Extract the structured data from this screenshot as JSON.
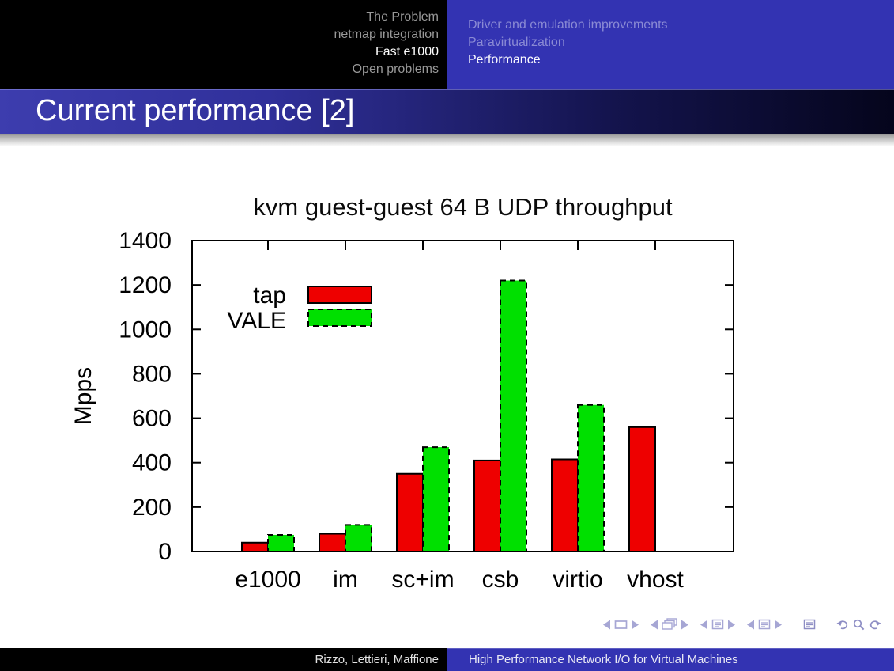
{
  "header": {
    "left_items": [
      {
        "label": "The Problem",
        "active": false
      },
      {
        "label": "netmap integration",
        "active": false
      },
      {
        "label": "Fast e1000",
        "active": true
      },
      {
        "label": "Open problems",
        "active": false
      }
    ],
    "right_items": [
      {
        "label": "Driver and emulation improvements",
        "active": false
      },
      {
        "label": "Paravirtualization",
        "active": false
      },
      {
        "label": "Performance",
        "active": true
      }
    ]
  },
  "frame": {
    "title": "Current performance [2]"
  },
  "chart_data": {
    "type": "bar",
    "title": "kvm guest-guest 64 B UDP throughput",
    "xlabel": "",
    "ylabel": "Mpps",
    "categories": [
      "e1000",
      "im",
      "sc+im",
      "csb",
      "virtio",
      "vhost"
    ],
    "series": [
      {
        "name": "tap",
        "color": "#ee0000",
        "border_style": "solid",
        "values": [
          40,
          80,
          350,
          410,
          415,
          560
        ]
      },
      {
        "name": "VALE",
        "color": "#00e000",
        "border_style": "dashed",
        "values": [
          75,
          120,
          470,
          1220,
          660,
          null
        ]
      }
    ],
    "ylim": [
      0,
      1400
    ],
    "ytick_step": 200,
    "grid": false,
    "legend_position": "top-left-inside"
  },
  "nav_icons": [
    {
      "name": "prev-slide-icon"
    },
    {
      "name": "slide-frame-icon"
    },
    {
      "name": "next-slide-icon"
    },
    {
      "name": "prev-frame-icon"
    },
    {
      "name": "frames-stack-icon"
    },
    {
      "name": "next-frame-icon"
    },
    {
      "name": "prev-subsection-icon"
    },
    {
      "name": "subsection-doc-icon"
    },
    {
      "name": "next-subsection-icon"
    },
    {
      "name": "prev-section-icon"
    },
    {
      "name": "section-doc-icon"
    },
    {
      "name": "next-section-icon"
    },
    {
      "name": "presentation-end-icon"
    },
    {
      "name": "back-icon"
    },
    {
      "name": "search-icon"
    },
    {
      "name": "forward-icon"
    }
  ],
  "footer": {
    "authors": "Rizzo, Lettieri, Maffione",
    "short_title": "High Performance Network I/O for Virtual Machines"
  },
  "colors": {
    "accent_blue": "#3333b2",
    "bar_red": "#ee0000",
    "bar_green": "#00e000",
    "header_black": "#000000"
  }
}
